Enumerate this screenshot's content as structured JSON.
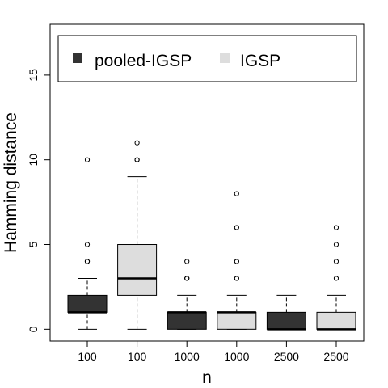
{
  "chart_data": {
    "type": "box",
    "xlabel": "n",
    "ylabel": "Hamming distance",
    "ylim": [
      -0.7,
      18.0
    ],
    "y_ticks": [
      0,
      5,
      10,
      15
    ],
    "grid": false,
    "legend": {
      "position": "top",
      "entries": [
        {
          "label": "pooled-IGSP",
          "color": "#333333"
        },
        {
          "label": "IGSP",
          "color": "#dddddd"
        }
      ]
    },
    "categories": [
      "100",
      "100",
      "1000",
      "1000",
      "2500",
      "2500"
    ],
    "boxes": [
      {
        "series": "pooled-IGSP",
        "category": "100",
        "color": "#333333",
        "whisker_low": 0,
        "q1": 1,
        "median": 1,
        "q3": 2,
        "whisker_high": 3,
        "outliers": [
          4,
          4,
          5,
          10
        ]
      },
      {
        "series": "IGSP",
        "category": "100",
        "color": "#dddddd",
        "whisker_low": 0,
        "q1": 2,
        "median": 3,
        "q3": 5,
        "whisker_high": 9,
        "outliers": [
          10,
          10,
          11
        ]
      },
      {
        "series": "pooled-IGSP",
        "category": "1000",
        "color": "#333333",
        "whisker_low": 0,
        "q1": 0,
        "median": 1,
        "q3": 1,
        "whisker_high": 2,
        "outliers": [
          3,
          3,
          4
        ]
      },
      {
        "series": "IGSP",
        "category": "1000",
        "color": "#dddddd",
        "whisker_low": 0,
        "q1": 0,
        "median": 1,
        "q3": 1,
        "whisker_high": 2,
        "outliers": [
          3,
          3,
          4,
          4,
          6,
          6,
          8
        ]
      },
      {
        "series": "pooled-IGSP",
        "category": "2500",
        "color": "#333333",
        "whisker_low": 0,
        "q1": 0,
        "median": 0,
        "q3": 1,
        "whisker_high": 2,
        "outliers": []
      },
      {
        "series": "IGSP",
        "category": "2500",
        "color": "#dddddd",
        "whisker_low": 0,
        "q1": 0,
        "median": 0,
        "q3": 1,
        "whisker_high": 2,
        "outliers": [
          3,
          4,
          5,
          6
        ]
      }
    ]
  }
}
